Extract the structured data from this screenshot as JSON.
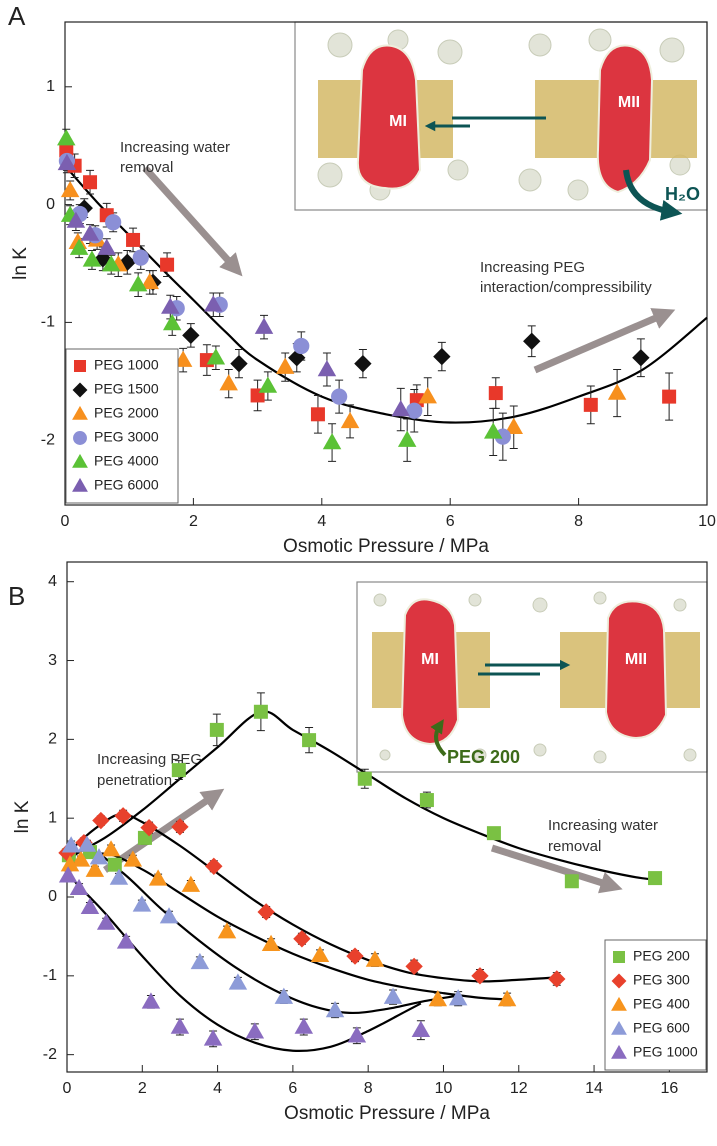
{
  "chart_data": [
    {
      "type": "scatter",
      "panel": "A",
      "xlabel": "Osmotic Pressure / MPa",
      "ylabel": "ln K",
      "xlim": [
        0,
        10
      ],
      "ylim": [
        -2.55,
        1.55
      ],
      "xticks": [
        0,
        2,
        4,
        6,
        8,
        10
      ],
      "yticks": [
        -2,
        -1,
        0,
        1
      ],
      "legend": "lower left",
      "annotations": [
        {
          "lines": [
            "Increasing water",
            "removal"
          ]
        },
        {
          "lines": [
            "Increasing PEG",
            "interaction/compressibility"
          ]
        }
      ],
      "inset_labels": [
        "MI",
        "MII",
        "H₂O"
      ],
      "series": [
        {
          "name": "PEG 1000",
          "color": "#e8382a",
          "marker": "square",
          "x": [
            0.02,
            0.15,
            0.39,
            0.65,
            1.06,
            1.59,
            2.21,
            3.0,
            3.94,
            5.48,
            6.71,
            8.19,
            9.41
          ],
          "values": [
            0.46,
            0.33,
            0.19,
            -0.09,
            -0.3,
            -0.51,
            -1.32,
            -1.62,
            -1.78,
            -1.66,
            -1.6,
            -1.7,
            -1.63
          ],
          "errors": [
            0.1,
            0.1,
            0.1,
            0.1,
            0.1,
            0.1,
            0.13,
            0.13,
            0.16,
            0.13,
            0.13,
            0.16,
            0.2
          ]
        },
        {
          "name": "PEG 1500",
          "color": "#111111",
          "marker": "diamond",
          "x": [
            0.3,
            0.59,
            0.97,
            1.37,
            1.96,
            2.71,
            3.61,
            4.64,
            5.87,
            7.27,
            8.97
          ],
          "values": [
            -0.03,
            -0.46,
            -0.49,
            -0.66,
            -1.11,
            -1.35,
            -1.3,
            -1.35,
            -1.29,
            -1.16,
            -1.3
          ],
          "errors": [
            0.08,
            0.1,
            0.1,
            0.1,
            0.1,
            0.12,
            0.12,
            0.12,
            0.12,
            0.13,
            0.16
          ]
        },
        {
          "name": "PEG 2000",
          "color": "#f7901e",
          "marker": "triangle",
          "x": [
            0.08,
            0.2,
            0.5,
            0.83,
            1.32,
            1.84,
            2.55,
            3.43,
            4.44,
            5.65,
            6.99,
            8.6
          ],
          "values": [
            0.12,
            -0.32,
            -0.3,
            -0.51,
            -0.66,
            -1.32,
            -1.52,
            -1.38,
            -1.84,
            -1.63,
            -1.89,
            -1.6
          ],
          "errors": [
            0.08,
            0.08,
            0.08,
            0.1,
            0.1,
            0.1,
            0.12,
            0.12,
            0.14,
            0.16,
            0.18,
            0.2
          ]
        },
        {
          "name": "PEG 3000",
          "color": "#8b8fd6",
          "marker": "circle",
          "x": [
            0.03,
            0.23,
            0.47,
            0.75,
            1.18,
            1.74,
            2.41,
            3.68,
            4.27,
            5.44,
            6.82
          ],
          "values": [
            0.37,
            -0.08,
            -0.26,
            -0.15,
            -0.45,
            -0.88,
            -0.85,
            -1.2,
            -1.63,
            -1.75,
            -1.97
          ],
          "errors": [
            0.08,
            0.08,
            0.08,
            0.08,
            0.1,
            0.1,
            0.1,
            0.12,
            0.14,
            0.18,
            0.2
          ]
        },
        {
          "name": "PEG 4000",
          "color": "#5bc236",
          "marker": "triangle",
          "x": [
            0.02,
            0.08,
            0.22,
            0.42,
            0.72,
            1.14,
            1.67,
            2.35,
            3.16,
            4.16,
            5.33,
            6.67
          ],
          "values": [
            0.56,
            -0.09,
            -0.37,
            -0.47,
            -0.51,
            -0.68,
            -1.01,
            -1.3,
            -1.54,
            -2.02,
            -2.0,
            -1.93
          ],
          "errors": [
            0.08,
            0.08,
            0.08,
            0.08,
            0.08,
            0.1,
            0.1,
            0.1,
            0.12,
            0.16,
            0.18,
            0.2
          ]
        },
        {
          "name": "PEG 6000",
          "color": "#7b5fb0",
          "marker": "triangle",
          "x": [
            0.03,
            0.17,
            0.39,
            0.65,
            1.64,
            2.31,
            3.1,
            4.08,
            5.23
          ],
          "values": [
            0.35,
            -0.14,
            -0.25,
            -0.37,
            -0.87,
            -0.85,
            -1.04,
            -1.4,
            -1.74
          ],
          "errors": [
            0.08,
            0.08,
            0.08,
            0.08,
            0.1,
            0.1,
            0.1,
            0.14,
            0.18
          ]
        }
      ],
      "curves": [
        {
          "color": "#000000",
          "x": [
            0,
            0.5,
            1,
            1.5,
            2,
            2.5,
            3,
            4,
            5,
            6,
            7,
            8,
            9,
            10
          ],
          "y": [
            0.33,
            0.02,
            -0.26,
            -0.54,
            -0.81,
            -1.08,
            -1.32,
            -1.63,
            -1.78,
            -1.85,
            -1.8,
            -1.63,
            -1.4,
            -0.96
          ]
        }
      ]
    },
    {
      "type": "scatter",
      "panel": "B",
      "xlabel": "Osmotic Pressure / MPa",
      "ylabel": "ln K",
      "xlim": [
        0,
        17
      ],
      "ylim": [
        -2.22,
        4.25
      ],
      "xticks": [
        0,
        2,
        4,
        6,
        8,
        10,
        12,
        14,
        16
      ],
      "yticks": [
        -2,
        -1,
        0,
        1,
        2,
        3,
        4
      ],
      "legend": "lower right",
      "annotations": [
        {
          "lines": [
            "Increasing PEG",
            "penetration"
          ]
        },
        {
          "lines": [
            "Increasing water",
            "removal"
          ]
        }
      ],
      "inset_labels": [
        "MI",
        "MII",
        "PEG 200"
      ],
      "series": [
        {
          "name": "PEG 200",
          "color": "#7ac143",
          "marker": "square",
          "x": [
            0.05,
            0.61,
            1.27,
            2.07,
            2.97,
            3.98,
            5.15,
            6.43,
            7.91,
            9.56,
            11.34,
            13.41,
            15.62
          ],
          "values": [
            0.53,
            0.57,
            0.41,
            0.75,
            1.61,
            2.12,
            2.35,
            1.99,
            1.5,
            1.23,
            0.81,
            0.2,
            0.24
          ],
          "errors": [
            0.06,
            0.06,
            0.06,
            0.08,
            0.12,
            0.2,
            0.24,
            0.16,
            0.12,
            0.1,
            0.06,
            0.05,
            0.05
          ]
        },
        {
          "name": "PEG 300",
          "color": "#e8412c",
          "marker": "diamond",
          "x": [
            0.0,
            0.45,
            0.9,
            1.49,
            2.18,
            3.0,
            3.9,
            5.29,
            6.24,
            7.65,
            9.22,
            10.97,
            13.01
          ],
          "values": [
            0.56,
            0.69,
            0.97,
            1.03,
            0.88,
            0.89,
            0.39,
            -0.19,
            -0.53,
            -0.75,
            -0.88,
            -1.0,
            -1.04
          ],
          "errors": [
            0.05,
            0.06,
            0.06,
            0.07,
            0.07,
            0.07,
            0.07,
            0.07,
            0.07,
            0.07,
            0.08,
            0.08,
            0.08
          ]
        },
        {
          "name": "PEG 400",
          "color": "#f7941d",
          "marker": "triangle",
          "x": [
            0.08,
            0.37,
            0.74,
            1.17,
            1.75,
            2.42,
            3.29,
            4.25,
            5.42,
            6.72,
            8.18,
            9.85,
            11.69
          ],
          "values": [
            0.41,
            0.47,
            0.34,
            0.6,
            0.47,
            0.23,
            0.15,
            -0.44,
            -0.6,
            -0.74,
            -0.8,
            -1.3,
            -1.3
          ],
          "errors": [
            0.05,
            0.05,
            0.05,
            0.06,
            0.06,
            0.06,
            0.06,
            0.07,
            0.07,
            0.07,
            0.08,
            0.08,
            0.08
          ]
        },
        {
          "name": "PEG 600",
          "color": "#8d9bd8",
          "marker": "triangle",
          "x": [
            0.11,
            0.53,
            0.85,
            1.38,
            1.99,
            2.71,
            3.53,
            4.54,
            5.76,
            7.12,
            8.66,
            10.39
          ],
          "values": [
            0.65,
            0.66,
            0.5,
            0.24,
            -0.1,
            -0.25,
            -0.83,
            -1.09,
            -1.27,
            -1.44,
            -1.27,
            -1.29
          ],
          "errors": [
            0.06,
            0.06,
            0.06,
            0.06,
            0.06,
            0.07,
            0.07,
            0.07,
            0.08,
            0.09,
            0.09,
            0.09
          ]
        },
        {
          "name": "PEG 1000",
          "color": "#8a6cc0",
          "marker": "triangle",
          "x": [
            0.03,
            0.32,
            0.61,
            1.04,
            1.57,
            2.23,
            3.0,
            3.88,
            4.99,
            6.29,
            7.7,
            9.4
          ],
          "values": [
            0.27,
            0.11,
            -0.13,
            -0.33,
            -0.57,
            -1.33,
            -1.65,
            -1.8,
            -1.71,
            -1.65,
            -1.76,
            -1.69
          ],
          "errors": [
            0.06,
            0.06,
            0.06,
            0.06,
            0.07,
            0.08,
            0.1,
            0.1,
            0.1,
            0.1,
            0.1,
            0.12
          ]
        }
      ],
      "curves": [
        {
          "color": "#000000",
          "x": [
            0,
            1,
            2,
            3,
            4,
            5.15,
            6,
            7,
            8,
            9,
            10,
            11,
            12,
            13,
            14,
            15,
            15.6
          ],
          "y": [
            0.5,
            0.75,
            1.1,
            1.5,
            1.9,
            2.35,
            2.12,
            1.85,
            1.55,
            1.25,
            1.0,
            0.8,
            0.62,
            0.48,
            0.36,
            0.26,
            0.22
          ]
        },
        {
          "color": "#000000",
          "x": [
            0,
            0.7,
            1.4,
            2,
            3,
            4,
            5,
            6,
            7,
            8,
            9,
            10,
            11,
            12,
            13
          ],
          "y": [
            0.55,
            0.85,
            1.05,
            0.95,
            0.65,
            0.3,
            -0.05,
            -0.35,
            -0.6,
            -0.8,
            -0.95,
            -1.03,
            -1.07,
            -1.05,
            -1.02
          ]
        },
        {
          "color": "#000000",
          "x": [
            0,
            1,
            2,
            3,
            4,
            5,
            6,
            7,
            8,
            9,
            10,
            11,
            11.7
          ],
          "y": [
            0.4,
            0.55,
            0.35,
            0.05,
            -0.25,
            -0.5,
            -0.72,
            -0.9,
            -1.05,
            -1.15,
            -1.22,
            -1.28,
            -1.3
          ]
        },
        {
          "color": "#000000",
          "x": [
            0,
            0.6,
            1.5,
            2.5,
            3.5,
            4.5,
            5.5,
            6.5,
            7.5,
            8.5,
            9.5,
            10.4
          ],
          "y": [
            0.45,
            0.6,
            0.3,
            -0.15,
            -0.55,
            -0.9,
            -1.18,
            -1.38,
            -1.47,
            -1.42,
            -1.32,
            -1.25
          ]
        },
        {
          "color": "#000000",
          "x": [
            0,
            0.5,
            1,
            2,
            3,
            4,
            5,
            6,
            7,
            8,
            9,
            9.4
          ],
          "y": [
            0.3,
            0.05,
            -0.2,
            -0.75,
            -1.25,
            -1.62,
            -1.85,
            -1.95,
            -1.9,
            -1.7,
            -1.45,
            -1.35
          ]
        }
      ]
    }
  ]
}
